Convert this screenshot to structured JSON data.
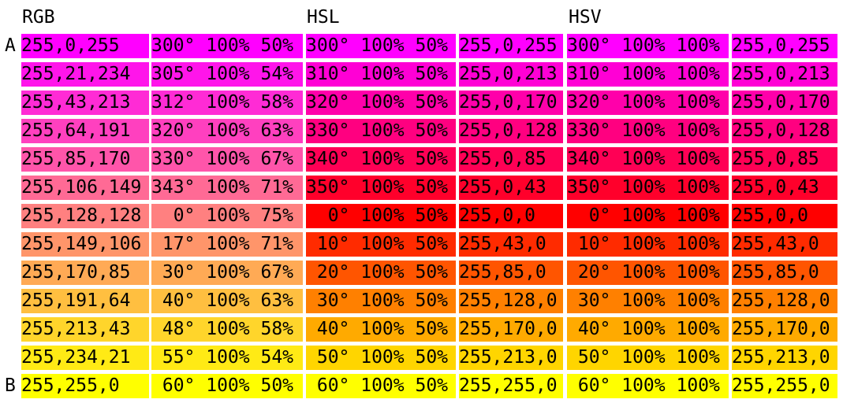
{
  "headers": {
    "rgb": "RGB",
    "hsl": "HSL",
    "hsv": "HSV"
  },
  "labels": {
    "start": "A",
    "end": "B"
  },
  "rows": [
    {
      "c": [
        "255,0,255",
        "300° 100% 50%",
        "300° 100% 50%",
        "255,0,255",
        "300° 100% 100%",
        "255,0,255"
      ],
      "bg": [
        "#ff00ff",
        "#ff00ff",
        "#ff00ff",
        "#ff00ff",
        "#ff00ff",
        "#ff00ff"
      ]
    },
    {
      "c": [
        "255,21,234",
        "305° 100% 54%",
        "310° 100% 50%",
        "255,0,213",
        "310° 100% 100%",
        "255,0,213"
      ],
      "bg": [
        "#ff15ea",
        "#ff15ea",
        "#ff00d5",
        "#ff00d5",
        "#ff00d5",
        "#ff00d5"
      ]
    },
    {
      "c": [
        "255,43,213",
        "312° 100% 58%",
        "320° 100% 50%",
        "255,0,170",
        "320° 100% 100%",
        "255,0,170"
      ],
      "bg": [
        "#ff2bd5",
        "#ff2bd5",
        "#ff00aa",
        "#ff00aa",
        "#ff00aa",
        "#ff00aa"
      ]
    },
    {
      "c": [
        "255,64,191",
        "320° 100% 63%",
        "330° 100% 50%",
        "255,0,128",
        "330° 100% 100%",
        "255,0,128"
      ],
      "bg": [
        "#ff40bf",
        "#ff40bf",
        "#ff0080",
        "#ff0080",
        "#ff0080",
        "#ff0080"
      ]
    },
    {
      "c": [
        "255,85,170",
        "330° 100% 67%",
        "340° 100% 50%",
        "255,0,85",
        "340° 100% 100%",
        "255,0,85"
      ],
      "bg": [
        "#ff55aa",
        "#ff55aa",
        "#ff0055",
        "#ff0055",
        "#ff0055",
        "#ff0055"
      ]
    },
    {
      "c": [
        "255,106,149",
        "343° 100% 71%",
        "350° 100% 50%",
        "255,0,43",
        "350° 100% 100%",
        "255,0,43"
      ],
      "bg": [
        "#ff6a95",
        "#ff6a95",
        "#ff002b",
        "#ff002b",
        "#ff002b",
        "#ff002b"
      ]
    },
    {
      "c": [
        "255,128,128",
        "  0° 100% 75%",
        "  0° 100% 50%",
        "255,0,0",
        "  0° 100% 100%",
        "255,0,0"
      ],
      "bg": [
        "#ff8080",
        "#ff8080",
        "#ff0000",
        "#ff0000",
        "#ff0000",
        "#ff0000"
      ]
    },
    {
      "c": [
        "255,149,106",
        " 17° 100% 71%",
        " 10° 100% 50%",
        "255,43,0",
        " 10° 100% 100%",
        "255,43,0"
      ],
      "bg": [
        "#ff956a",
        "#ff956a",
        "#ff2b00",
        "#ff2b00",
        "#ff2b00",
        "#ff2b00"
      ]
    },
    {
      "c": [
        "255,170,85",
        " 30° 100% 67%",
        " 20° 100% 50%",
        "255,85,0",
        " 20° 100% 100%",
        "255,85,0"
      ],
      "bg": [
        "#ffaa55",
        "#ffaa55",
        "#ff5500",
        "#ff5500",
        "#ff5500",
        "#ff5500"
      ]
    },
    {
      "c": [
        "255,191,64",
        " 40° 100% 63%",
        " 30° 100% 50%",
        "255,128,0",
        " 30° 100% 100%",
        "255,128,0"
      ],
      "bg": [
        "#ffbf40",
        "#ffbf40",
        "#ff8000",
        "#ff8000",
        "#ff8000",
        "#ff8000"
      ]
    },
    {
      "c": [
        "255,213,43",
        " 48° 100% 58%",
        " 40° 100% 50%",
        "255,170,0",
        " 40° 100% 100%",
        "255,170,0"
      ],
      "bg": [
        "#ffd52b",
        "#ffd52b",
        "#ffaa00",
        "#ffaa00",
        "#ffaa00",
        "#ffaa00"
      ]
    },
    {
      "c": [
        "255,234,21",
        " 55° 100% 54%",
        " 50° 100% 50%",
        "255,213,0",
        " 50° 100% 100%",
        "255,213,0"
      ],
      "bg": [
        "#ffea15",
        "#ffea15",
        "#ffd500",
        "#ffd500",
        "#ffd500",
        "#ffd500"
      ]
    },
    {
      "c": [
        "255,255,0",
        " 60° 100% 50%",
        " 60° 100% 50%",
        "255,255,0",
        " 60° 100% 100%",
        "255,255,0"
      ],
      "bg": [
        "#ffff00",
        "#ffff00",
        "#ffff00",
        "#ffff00",
        "#ffff00",
        "#ffff00"
      ]
    }
  ]
}
